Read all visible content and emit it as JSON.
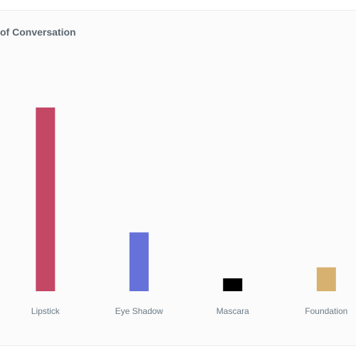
{
  "chart_data": {
    "type": "bar",
    "title": "of Conversation",
    "categories": [
      "Lipstick",
      "Eye Shadow",
      "Mascara",
      "Foundation"
    ],
    "values": [
      100,
      32,
      7,
      13
    ],
    "colors": [
      "#c44766",
      "#6672d9",
      "#000000",
      "#d6b16f"
    ],
    "xlabel": "",
    "ylabel": "",
    "ylim": [
      0,
      100
    ],
    "grid": false,
    "legend": "none"
  }
}
